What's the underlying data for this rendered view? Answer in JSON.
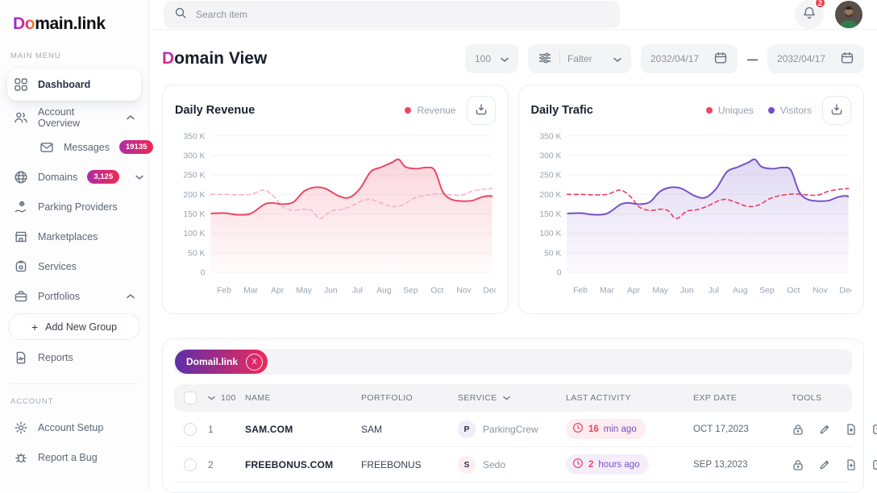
{
  "sidebar": {
    "logo_prefix": "Do",
    "logo_rest": "main.link",
    "section_main": "MAIN MENU",
    "section_account": "ACCOUNT",
    "items": [
      {
        "label": "Dashboard"
      },
      {
        "label": "Account Overview"
      },
      {
        "label": "Messages",
        "badge": "19135"
      },
      {
        "label": "Domains",
        "badge": "3,125"
      },
      {
        "label": "Parking Providers"
      },
      {
        "label": "Marketplaces"
      },
      {
        "label": "Services"
      },
      {
        "label": "Portfolios"
      },
      {
        "plus": "+",
        "label": "Add New Group"
      },
      {
        "label": "Reports"
      },
      {
        "label": "Account Setup"
      },
      {
        "label": "Report a Bug"
      }
    ]
  },
  "topbar": {
    "search_placeholder": "Search item",
    "notification_count": "2"
  },
  "page": {
    "title_accent": "D",
    "title_rest": "omain View"
  },
  "controls": {
    "page_size": "100",
    "filter_label": "Falter",
    "date_from": "2032/04/17",
    "date_separator": "—",
    "date_to": "2032/04/17"
  },
  "chart_data": [
    {
      "type": "area",
      "title": "Daily Revenue",
      "x_labels": [
        "Feb",
        "Mar",
        "Apr",
        "May",
        "Jun",
        "Jul",
        "Aug",
        "Sep",
        "Oct",
        "Nov",
        "Dec"
      ],
      "y_ticks": [
        "350 K",
        "300 K",
        "250 K",
        "200 K",
        "150 K",
        "100 K",
        "50 K",
        "0"
      ],
      "ylim": [
        0,
        350
      ],
      "grid": true,
      "legend_position": "top-right",
      "legend": [
        {
          "label": "Revenue",
          "color": "#ee4562"
        }
      ],
      "series": [
        {
          "name": "Revenue",
          "style": "area",
          "color": "#ee4562",
          "points": [
            [
              -0.5,
              151
            ],
            [
              0,
              152
            ],
            [
              0.5,
              148
            ],
            [
              1,
              151
            ],
            [
              1.5,
              174
            ],
            [
              1.8,
              178
            ],
            [
              2.2,
              175
            ],
            [
              2.6,
              180
            ],
            [
              3,
              208
            ],
            [
              3.4,
              218
            ],
            [
              3.8,
              215
            ],
            [
              4.3,
              196
            ],
            [
              4.7,
              192
            ],
            [
              5.1,
              215
            ],
            [
              5.5,
              258
            ],
            [
              5.9,
              270
            ],
            [
              6.3,
              282
            ],
            [
              6.55,
              290
            ],
            [
              6.8,
              271
            ],
            [
              7.2,
              266
            ],
            [
              7.6,
              269
            ],
            [
              7.9,
              262
            ],
            [
              8.2,
              208
            ],
            [
              8.5,
              188
            ],
            [
              8.9,
              183
            ],
            [
              9.3,
              184
            ],
            [
              9.7,
              194
            ],
            [
              10,
              196
            ],
            [
              10.35,
              193
            ]
          ]
        },
        {
          "name": "Revenue (dashed comparison)",
          "style": "dashed",
          "color": "#f6b3c3",
          "points": [
            [
              -0.5,
              200
            ],
            [
              0,
              200
            ],
            [
              0.5,
              199
            ],
            [
              1,
              200
            ],
            [
              1.5,
              211
            ],
            [
              1.9,
              193
            ],
            [
              2.2,
              168
            ],
            [
              2.6,
              159
            ],
            [
              3,
              162
            ],
            [
              3.3,
              158
            ],
            [
              3.6,
              138
            ],
            [
              4,
              157
            ],
            [
              4.4,
              161
            ],
            [
              4.8,
              171
            ],
            [
              5.2,
              184
            ],
            [
              5.5,
              187
            ],
            [
              5.9,
              178
            ],
            [
              6.3,
              169
            ],
            [
              6.7,
              173
            ],
            [
              7.1,
              189
            ],
            [
              7.5,
              197
            ],
            [
              8,
              201
            ],
            [
              8.5,
              199
            ],
            [
              8.9,
              198
            ],
            [
              9.3,
              208
            ],
            [
              9.7,
              213
            ],
            [
              10.35,
              215
            ]
          ]
        }
      ]
    },
    {
      "type": "area",
      "title": "Daily Trafic",
      "x_labels": [
        "Feb",
        "Mar",
        "Apr",
        "May",
        "Jun",
        "Jul",
        "Aug",
        "Sep",
        "Oct",
        "Nov",
        "Dec"
      ],
      "y_ticks": [
        "350 K",
        "300 K",
        "250 K",
        "200 K",
        "150 K",
        "100 K",
        "50 K",
        "0"
      ],
      "ylim": [
        0,
        350
      ],
      "grid": true,
      "legend_position": "top-right",
      "legend": [
        {
          "label": "Uniques",
          "color": "#ee4562"
        },
        {
          "label": "Visitors",
          "color": "#7450c9"
        }
      ],
      "series": [
        {
          "name": "Visitors",
          "style": "area",
          "color": "#7450c9",
          "points": [
            [
              -0.5,
              151
            ],
            [
              0,
              152
            ],
            [
              0.5,
              148
            ],
            [
              1,
              151
            ],
            [
              1.5,
              174
            ],
            [
              1.8,
              178
            ],
            [
              2.2,
              175
            ],
            [
              2.6,
              180
            ],
            [
              3,
              208
            ],
            [
              3.4,
              218
            ],
            [
              3.8,
              215
            ],
            [
              4.3,
              196
            ],
            [
              4.7,
              192
            ],
            [
              5.1,
              215
            ],
            [
              5.5,
              258
            ],
            [
              5.9,
              270
            ],
            [
              6.3,
              282
            ],
            [
              6.55,
              290
            ],
            [
              6.8,
              271
            ],
            [
              7.2,
              266
            ],
            [
              7.6,
              269
            ],
            [
              7.9,
              262
            ],
            [
              8.2,
              208
            ],
            [
              8.5,
              188
            ],
            [
              8.9,
              183
            ],
            [
              9.3,
              184
            ],
            [
              9.7,
              194
            ],
            [
              10,
              196
            ],
            [
              10.35,
              193
            ]
          ]
        },
        {
          "name": "Uniques",
          "style": "dashed",
          "color": "#ee3b5e",
          "points": [
            [
              -0.5,
              200
            ],
            [
              0,
              200
            ],
            [
              0.5,
              199
            ],
            [
              1,
              200
            ],
            [
              1.5,
              211
            ],
            [
              1.9,
              193
            ],
            [
              2.2,
              168
            ],
            [
              2.6,
              159
            ],
            [
              3,
              162
            ],
            [
              3.3,
              158
            ],
            [
              3.6,
              138
            ],
            [
              4,
              157
            ],
            [
              4.4,
              161
            ],
            [
              4.8,
              171
            ],
            [
              5.2,
              184
            ],
            [
              5.5,
              187
            ],
            [
              5.9,
              178
            ],
            [
              6.3,
              169
            ],
            [
              6.7,
              173
            ],
            [
              7.1,
              189
            ],
            [
              7.5,
              197
            ],
            [
              8,
              201
            ],
            [
              8.5,
              199
            ],
            [
              8.9,
              198
            ],
            [
              9.3,
              208
            ],
            [
              9.7,
              213
            ],
            [
              10.35,
              215
            ]
          ]
        }
      ]
    }
  ],
  "table": {
    "filter_tag": {
      "label": "Domail.link",
      "close": "X"
    },
    "header": {
      "select_count": "100",
      "name": "NAME",
      "portfolio": "PORTFOLIO",
      "service": "SERVICE",
      "last_activity": "LAST ACTIVITY",
      "exp_date": "EXP DATE",
      "tools": "TOOLS"
    },
    "rows": [
      {
        "index": "1",
        "name": "SAM.COM",
        "portfolio": "SAM",
        "service_initial": "P",
        "service": "ParkingCrew",
        "service_tint": "#f0ecfa",
        "activity_num": "16",
        "activity_unit": "min ago",
        "activity_tint": "#fdecf0",
        "exp_date": "OCT 17,2023"
      },
      {
        "index": "2",
        "name": "FREEBONUS.COM",
        "portfolio": "FREEBONUS",
        "service_initial": "S",
        "service": "Sedo",
        "service_tint": "#fdeef2",
        "activity_num": "2",
        "activity_unit": "hours ago",
        "activity_tint": "#f4eefb",
        "exp_date": "SEP 13,2023"
      }
    ]
  }
}
